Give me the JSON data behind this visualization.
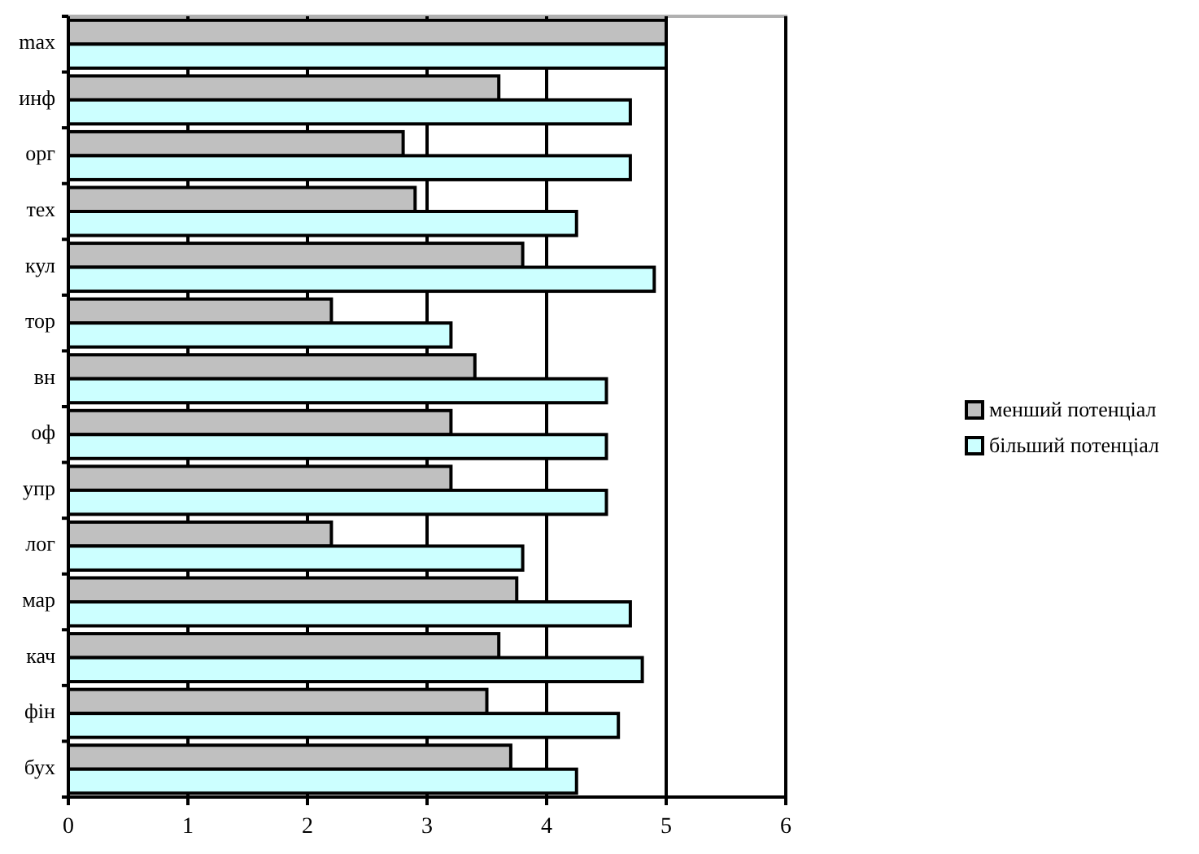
{
  "chart_data": {
    "type": "bar",
    "orientation": "horizontal",
    "categories": [
      "max",
      "инф",
      "орг",
      "тех",
      "кул",
      "тор",
      "вн",
      "оф",
      "упр",
      "лог",
      "мар",
      "кач",
      "фін",
      "бух"
    ],
    "series": [
      {
        "name": "менший потенціал",
        "color": "#c0c0c0",
        "values": [
          5,
          3.6,
          2.8,
          2.9,
          3.8,
          2.2,
          3.4,
          3.2,
          3.2,
          2.2,
          3.75,
          3.6,
          3.5,
          3.7
        ]
      },
      {
        "name": "більший потенціал",
        "color": "#ccffff",
        "values": [
          5,
          4.7,
          4.7,
          4.25,
          4.9,
          3.2,
          4.5,
          4.5,
          4.5,
          3.8,
          4.7,
          4.8,
          4.6,
          4.25
        ]
      }
    ],
    "xlim": [
      0,
      6
    ],
    "xticks": [
      0,
      1,
      2,
      3,
      4,
      5,
      6
    ],
    "grid": "x",
    "legend": "right"
  }
}
